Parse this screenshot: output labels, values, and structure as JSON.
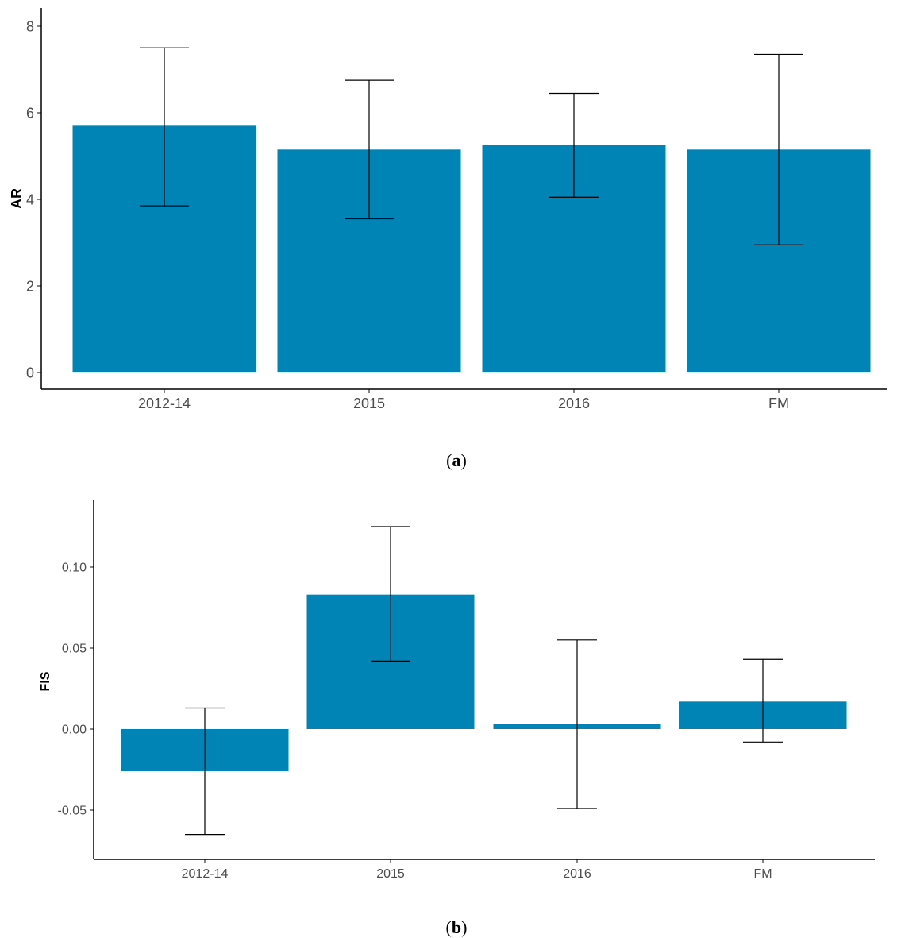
{
  "colors": {
    "bar": "#0083B5",
    "axis": "#000000",
    "tick_text": "#4d4d4d"
  },
  "panel_labels": [
    {
      "open": "(",
      "letter": "a",
      "close": ")"
    },
    {
      "open": "(",
      "letter": "b",
      "close": ")"
    }
  ],
  "chart_data": [
    {
      "type": "bar",
      "categories": [
        "2012-14",
        "2015",
        "2016",
        "FM"
      ],
      "values": [
        5.7,
        5.15,
        5.25,
        5.15
      ],
      "error_low": [
        3.85,
        3.55,
        4.05,
        2.95
      ],
      "error_high": [
        7.5,
        6.75,
        6.45,
        7.35
      ],
      "ylabel": "AR",
      "ylim": [
        0,
        8
      ],
      "yticks": [
        0,
        2,
        4,
        6,
        8
      ],
      "ytick_labels": [
        "0",
        "2",
        "4",
        "6",
        "8"
      ],
      "grid": false
    },
    {
      "type": "bar",
      "categories": [
        "2012-14",
        "2015",
        "2016",
        "FM"
      ],
      "values": [
        -0.026,
        0.083,
        0.003,
        0.017
      ],
      "error_low": [
        -0.065,
        0.042,
        -0.049,
        -0.008
      ],
      "error_high": [
        0.013,
        0.125,
        0.055,
        0.043
      ],
      "ylabel": "FIS",
      "ylim": [
        -0.08,
        0.14
      ],
      "yticks": [
        -0.05,
        0.0,
        0.05,
        0.1
      ],
      "ytick_labels": [
        "-0.05",
        "0.00",
        "0.05",
        "0.10"
      ],
      "grid": false
    }
  ]
}
